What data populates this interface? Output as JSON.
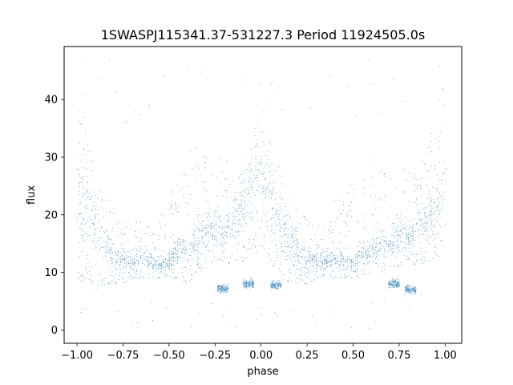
{
  "chart_data": {
    "type": "scatter",
    "title": "1SWASPJ115341.37-531227.3 Period 11924505.0s",
    "xlabel": "phase",
    "ylabel": "flux",
    "xlim": [
      -1.07,
      1.09
    ],
    "ylim": [
      -2.3,
      49.2
    ],
    "x_ticks": [
      -1.0,
      -0.75,
      -0.5,
      -0.25,
      0.0,
      0.25,
      0.5,
      0.75,
      1.0
    ],
    "x_tick_labels": [
      "−1.00",
      "−0.75",
      "−0.50",
      "−0.25",
      "0.00",
      "0.25",
      "0.50",
      "0.75",
      "1.00"
    ],
    "y_ticks": [
      0,
      10,
      20,
      30,
      40
    ],
    "y_tick_labels": [
      "0",
      "10",
      "20",
      "30",
      "40"
    ],
    "grid": false,
    "legend": "none",
    "marker_color": "#1f77b4",
    "description_of_density": "folded light curve: dense band 8–16 flux across all phases, maxima near phase -0.98, 0.0 and 1.0 reaching ~40-47, secondary low clumps near 6-8 at phases -0.22, 0.8",
    "envelope": {
      "phase": [
        -1.0,
        -0.95,
        -0.9,
        -0.85,
        -0.8,
        -0.75,
        -0.7,
        -0.65,
        -0.6,
        -0.55,
        -0.5,
        -0.45,
        -0.4,
        -0.35,
        -0.3,
        -0.25,
        -0.2,
        -0.15,
        -0.1,
        -0.05,
        0.0,
        0.05,
        0.1,
        0.15,
        0.2,
        0.25,
        0.3,
        0.35,
        0.4,
        0.45,
        0.5,
        0.55,
        0.6,
        0.65,
        0.7,
        0.75,
        0.8,
        0.85,
        0.9,
        0.95,
        1.0
      ],
      "upper": [
        40,
        36,
        30,
        24,
        22,
        20,
        18,
        20,
        18,
        21,
        25,
        28,
        31,
        32,
        30,
        31,
        30,
        28,
        30,
        34,
        44,
        35,
        28,
        24,
        21,
        20,
        18,
        20,
        23,
        23,
        26,
        30,
        30,
        28,
        28,
        30,
        28,
        30,
        32,
        38,
        45
      ],
      "center": [
        22,
        24,
        19,
        15,
        13,
        12,
        12,
        13,
        12,
        11,
        12,
        14,
        13,
        16,
        17,
        18,
        17,
        19,
        22,
        24,
        28,
        23,
        19,
        15,
        13,
        12,
        12,
        12,
        12,
        12,
        12,
        13,
        14,
        15,
        15,
        17,
        16,
        18,
        19,
        22,
        26
      ],
      "lower": [
        8,
        9,
        7,
        8,
        8,
        8,
        9,
        9,
        9,
        9,
        9,
        9,
        8,
        10,
        11,
        12,
        12,
        11,
        12,
        13,
        14,
        12,
        9,
        8,
        8,
        8,
        9,
        9,
        9,
        9,
        9,
        9,
        10,
        10,
        11,
        11,
        12,
        11,
        12,
        12,
        13
      ]
    },
    "low_clumps": [
      {
        "phase": -0.21,
        "flux": 7.2
      },
      {
        "phase": -0.07,
        "flux": 8.0
      },
      {
        "phase": 0.08,
        "flux": 7.8
      },
      {
        "phase": 0.81,
        "flux": 7.0
      },
      {
        "phase": 0.72,
        "flux": 8.0
      }
    ]
  }
}
